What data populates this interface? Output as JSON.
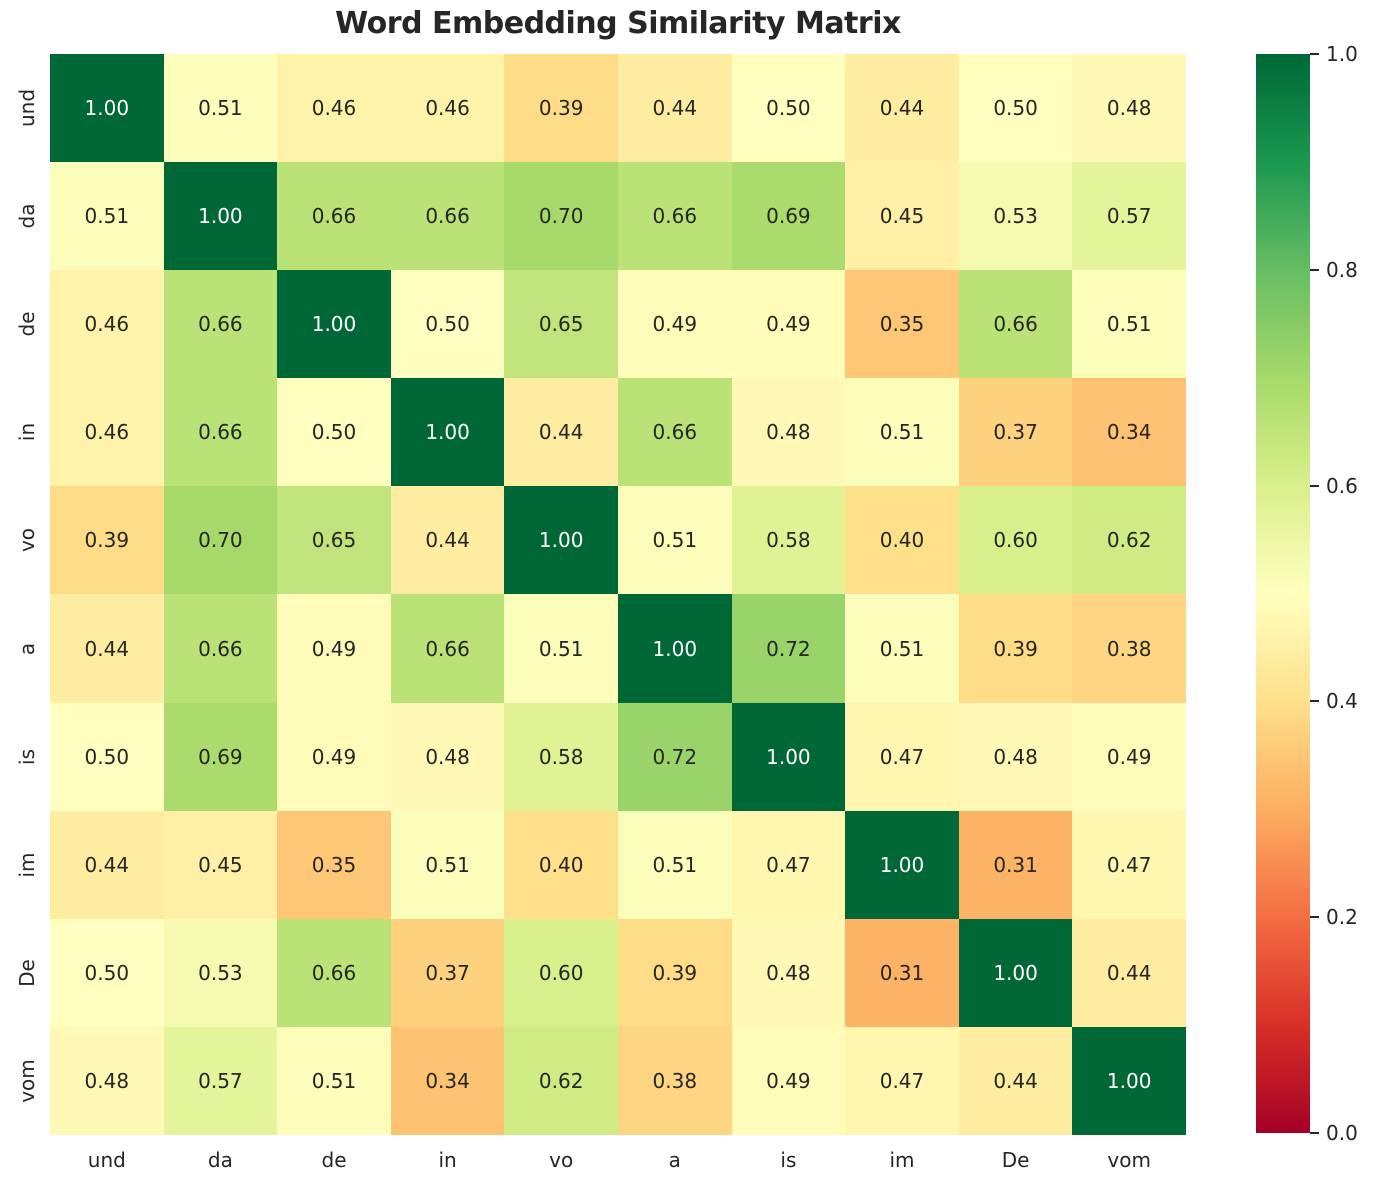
{
  "chart_data": {
    "type": "heatmap",
    "title": "Word Embedding Similarity Matrix",
    "labels": [
      "und",
      "da",
      "de",
      "in",
      "vo",
      "a",
      "is",
      "im",
      "De",
      "vom"
    ],
    "matrix": [
      [
        1.0,
        0.51,
        0.46,
        0.46,
        0.39,
        0.44,
        0.5,
        0.44,
        0.5,
        0.48
      ],
      [
        0.51,
        1.0,
        0.66,
        0.66,
        0.7,
        0.66,
        0.69,
        0.45,
        0.53,
        0.57
      ],
      [
        0.46,
        0.66,
        1.0,
        0.5,
        0.65,
        0.49,
        0.49,
        0.35,
        0.66,
        0.51
      ],
      [
        0.46,
        0.66,
        0.5,
        1.0,
        0.44,
        0.66,
        0.48,
        0.51,
        0.37,
        0.34
      ],
      [
        0.39,
        0.7,
        0.65,
        0.44,
        1.0,
        0.51,
        0.58,
        0.4,
        0.6,
        0.62
      ],
      [
        0.44,
        0.66,
        0.49,
        0.66,
        0.51,
        1.0,
        0.72,
        0.51,
        0.39,
        0.38
      ],
      [
        0.5,
        0.69,
        0.49,
        0.48,
        0.58,
        0.72,
        1.0,
        0.47,
        0.48,
        0.49
      ],
      [
        0.44,
        0.45,
        0.35,
        0.51,
        0.4,
        0.51,
        0.47,
        1.0,
        0.31,
        0.47
      ],
      [
        0.5,
        0.53,
        0.66,
        0.37,
        0.6,
        0.39,
        0.48,
        0.31,
        1.0,
        0.44
      ],
      [
        0.48,
        0.57,
        0.51,
        0.34,
        0.62,
        0.38,
        0.49,
        0.47,
        0.44,
        1.0
      ]
    ],
    "value_decimals": 2,
    "vmin": 0.0,
    "vmax": 1.0,
    "grid": false,
    "colormap": {
      "name": "RdYlGn",
      "stops": [
        "#a50026",
        "#d73027",
        "#f46d43",
        "#fdae61",
        "#fee08b",
        "#ffffbf",
        "#d9ef8b",
        "#a6d96a",
        "#66bd63",
        "#1a9850",
        "#006837"
      ]
    },
    "colorbar": {
      "position": "right",
      "tick_labels": [
        "1.0",
        "0.8",
        "0.6",
        "0.4",
        "0.2",
        "0.0"
      ]
    },
    "colors": {
      "title_text": "#262626",
      "axis_tick_text": "#262626",
      "annotation_dark": "#262626",
      "annotation_light": "#ffffff",
      "background": "#ffffff"
    }
  }
}
